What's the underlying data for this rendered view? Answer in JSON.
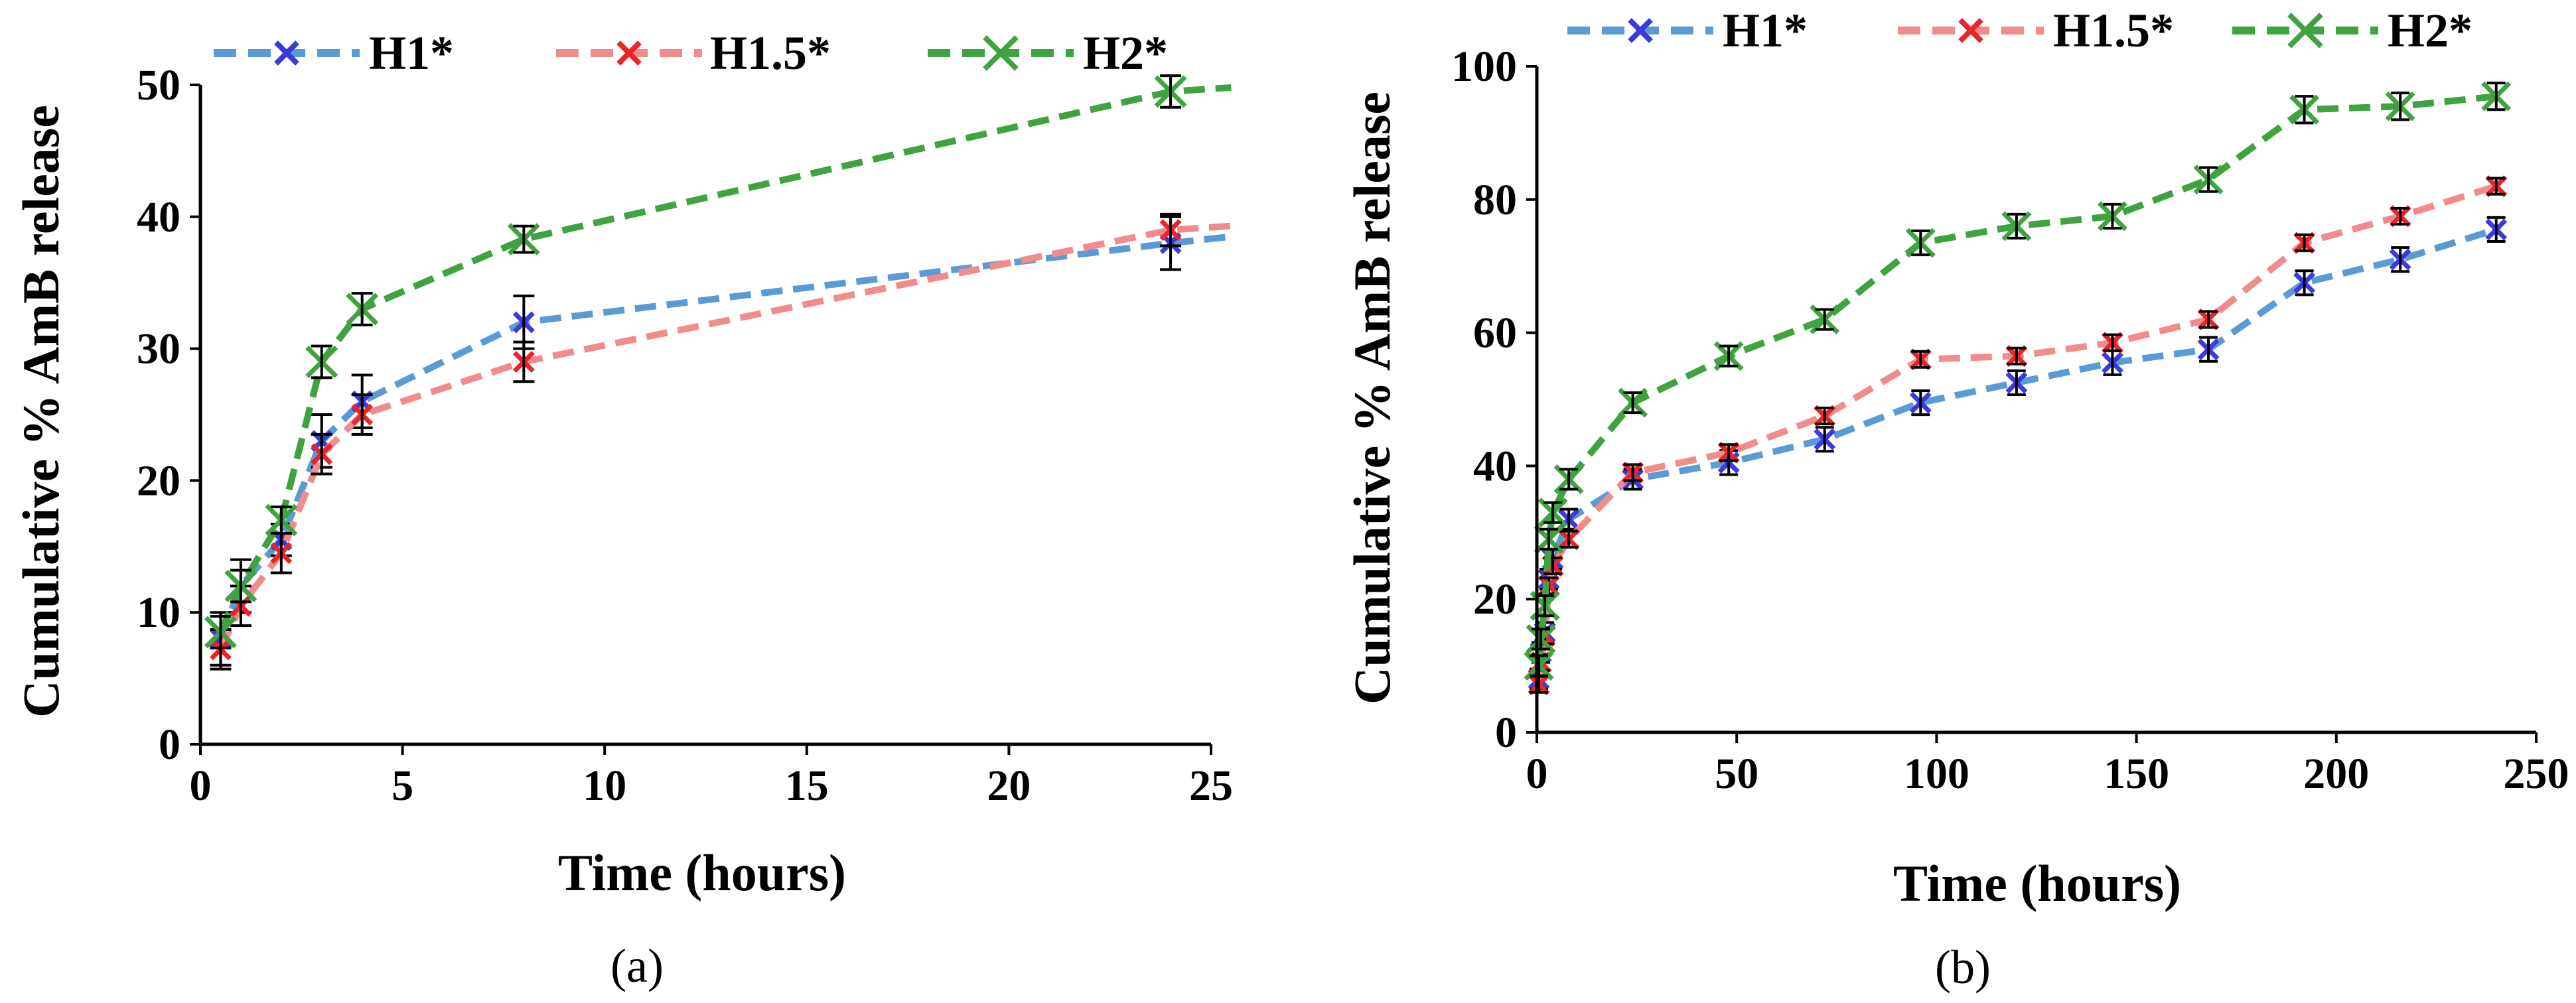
{
  "chart_data": [
    {
      "type": "line",
      "panel_label": "(a)",
      "xlabel": "Time (hours)",
      "ylabel": "Cumulative % AmB release",
      "xlim": [
        0,
        25
      ],
      "ylim": [
        0,
        50
      ],
      "xticks": [
        0,
        5,
        10,
        15,
        20,
        25
      ],
      "yticks": [
        0,
        10,
        20,
        30,
        40,
        50
      ],
      "legend_position": "top",
      "series": [
        {
          "name": "H1*",
          "line_color": "#5b9bd5",
          "marker_color": "#3b3bdb",
          "x": [
            0.5,
            1,
            2,
            3,
            4,
            8,
            24,
            25.5
          ],
          "y": [
            8,
            12,
            15.5,
            23,
            26,
            32,
            38,
            38.5
          ],
          "err": [
            2,
            2,
            1.2,
            2,
            2,
            2,
            2,
            0
          ]
        },
        {
          "name": "H1.5*",
          "line_color": "#f28b8b",
          "marker_color": "#e8252a",
          "x": [
            0.5,
            1,
            2,
            3,
            4,
            8,
            24,
            25.5
          ],
          "y": [
            7.2,
            10.5,
            14.5,
            22,
            25,
            29,
            39,
            39.3
          ],
          "err": [
            1.5,
            1.5,
            1.5,
            1.5,
            1.5,
            1.5,
            1.2,
            0
          ]
        },
        {
          "name": "H2*",
          "line_color": "#3fa33f",
          "marker_color": "#3fa33f",
          "x": [
            0.5,
            1,
            2,
            3,
            4,
            8,
            24,
            25.5
          ],
          "y": [
            8.5,
            12,
            17,
            29,
            33,
            38.3,
            49.5,
            49.8
          ],
          "err": [
            1.2,
            1.2,
            1,
            1.2,
            1.2,
            1,
            1.2,
            0
          ]
        }
      ]
    },
    {
      "type": "line",
      "panel_label": "(b)",
      "xlabel": "Time (hours)",
      "ylabel": "Cumulative % AmB release",
      "xlim": [
        0,
        250
      ],
      "ylim": [
        0,
        100
      ],
      "xticks": [
        0,
        50,
        100,
        150,
        200,
        250
      ],
      "yticks": [
        0,
        20,
        40,
        60,
        80,
        100
      ],
      "legend_position": "top",
      "series": [
        {
          "name": "H1*",
          "line_color": "#5b9bd5",
          "marker_color": "#3b3bdb",
          "x": [
            0.5,
            1,
            2,
            3,
            4,
            8,
            24,
            48,
            72,
            96,
            120,
            144,
            168,
            192,
            216,
            240
          ],
          "y": [
            8,
            12,
            15,
            23,
            26,
            32,
            38,
            40.5,
            44,
            49.5,
            52.5,
            55.5,
            57.5,
            67.5,
            71,
            75.5
          ],
          "err": [
            1.5,
            1.5,
            1.5,
            1.5,
            1.5,
            1.5,
            1.5,
            1.8,
            1.8,
            1.8,
            1.8,
            1.8,
            1.8,
            1.8,
            1.8,
            1.8
          ]
        },
        {
          "name": "H1.5*",
          "line_color": "#f28b8b",
          "marker_color": "#e8252a",
          "x": [
            0.5,
            1,
            2,
            3,
            4,
            8,
            24,
            48,
            72,
            96,
            120,
            144,
            168,
            192,
            216,
            240
          ],
          "y": [
            7.2,
            10.5,
            14.5,
            22,
            25,
            29,
            39,
            42,
            47.5,
            56,
            56.5,
            58.5,
            62,
            73.5,
            77.5,
            82
          ],
          "err": [
            1.2,
            1.2,
            1.2,
            1.2,
            1.2,
            1.2,
            1.2,
            1.2,
            1.2,
            1.2,
            1.2,
            1.2,
            1.2,
            1.2,
            1.2,
            1.2
          ]
        },
        {
          "name": "H2*",
          "line_color": "#3fa33f",
          "marker_color": "#3fa33f",
          "x": [
            0.5,
            1,
            2,
            3,
            4,
            8,
            24,
            48,
            72,
            96,
            120,
            144,
            168,
            192,
            216,
            240
          ],
          "y": [
            10,
            14,
            19,
            29,
            33,
            38,
            49.5,
            56.5,
            62,
            73.5,
            76,
            77.5,
            83,
            93.5,
            94,
            95.5
          ],
          "err": [
            1.5,
            1.5,
            1.5,
            1.5,
            1.5,
            1.5,
            1.5,
            1.5,
            1.5,
            1.8,
            1.8,
            1.8,
            1.8,
            2,
            2,
            2
          ]
        }
      ]
    }
  ]
}
